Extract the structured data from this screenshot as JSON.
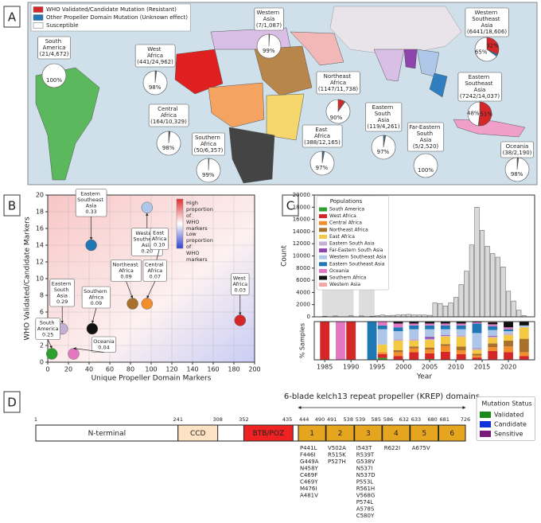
{
  "panel_labels": [
    "A",
    "B",
    "C",
    "D"
  ],
  "chart_data": [
    {
      "type": "pie",
      "legend": [
        {
          "name": "WHO Validated/Candidate Mutation (Resistant)",
          "color": "#d62728"
        },
        {
          "name": "Other Propeller Domain Mutation (Unknown effect)",
          "color": "#1f77b4"
        },
        {
          "name": "Susceptible",
          "color": "#ffffff"
        }
      ],
      "regions": [
        {
          "name": "South America",
          "counts": "(21/4,672)",
          "values": [
            0,
            0,
            100
          ],
          "value_labels": [
            null,
            null,
            "100%"
          ]
        },
        {
          "name": "West Africa",
          "counts": "(441/24,962)",
          "values": [
            1,
            1,
            98
          ],
          "value_labels": [
            null,
            null,
            "98%"
          ]
        },
        {
          "name": "Western Asia",
          "counts": "(7/1,087)",
          "values": [
            0,
            1,
            99
          ],
          "value_labels": [
            null,
            null,
            "99%"
          ]
        },
        {
          "name": "Central Africa",
          "counts": "(164/10,329)",
          "values": [
            1,
            1,
            98
          ],
          "value_labels": [
            null,
            null,
            "98%"
          ]
        },
        {
          "name": "Northeast Africa",
          "counts": "(1147/11,738)",
          "values": [
            9,
            1,
            90
          ],
          "value_labels": [
            null,
            null,
            "90%"
          ]
        },
        {
          "name": "Southern Africa",
          "counts": "(50/6,357)",
          "values": [
            0,
            1,
            99
          ],
          "value_labels": [
            null,
            null,
            "99%"
          ]
        },
        {
          "name": "East Africa",
          "counts": "(388/12,165)",
          "values": [
            1,
            2,
            97
          ],
          "value_labels": [
            null,
            null,
            "97%"
          ]
        },
        {
          "name": "Eastern South Asia",
          "counts": "(119/4,261)",
          "values": [
            1,
            2,
            97
          ],
          "value_labels": [
            null,
            null,
            "97%"
          ]
        },
        {
          "name": "Far-Eastern South Asia",
          "counts": "(5/2,520)",
          "values": [
            0,
            0,
            100
          ],
          "value_labels": [
            null,
            null,
            "100%"
          ]
        },
        {
          "name": "Western Southeast Asia",
          "counts": "(6441/18,606)",
          "values": [
            32,
            3,
            65
          ],
          "value_labels": [
            "32%",
            null,
            "65%"
          ]
        },
        {
          "name": "Eastern Southeast Asia",
          "counts": "(7242/14,037)",
          "values": [
            51,
            1,
            48
          ],
          "value_labels": [
            "51%",
            null,
            "48%"
          ]
        },
        {
          "name": "Oceania",
          "counts": "(38/2,190)",
          "values": [
            1,
            1,
            98
          ],
          "value_labels": [
            null,
            null,
            "98%"
          ]
        }
      ]
    },
    {
      "type": "scatter",
      "xlabel": "Unique Propeller Domain Markers",
      "ylabel": "WHO Validated/Candidate Markers",
      "xlim": [
        0,
        200
      ],
      "xticks": [
        0,
        20,
        40,
        60,
        80,
        100,
        120,
        140,
        160,
        180,
        200
      ],
      "ylim": [
        0,
        20
      ],
      "yticks": [
        0,
        2,
        4,
        6,
        8,
        10,
        12,
        14,
        16,
        18,
        20
      ],
      "grid": true,
      "colorbar_labels": [
        "High proportion of WHO markers",
        "Low proportion of WHO markers"
      ],
      "points": [
        {
          "name": "Eastern Southeast Asia",
          "x": 42,
          "y": 14,
          "ratio": 0.33,
          "color": "#1f77b4"
        },
        {
          "name": "Western Southeast Asia",
          "x": 96,
          "y": 18.5,
          "ratio": 0.2,
          "ratio_label": "0.20",
          "color": "#aec7e8"
        },
        {
          "name": "East Africa",
          "x": 104,
          "y": 11,
          "ratio": 0.1,
          "ratio_label": "0.10",
          "color": "#f5c842"
        },
        {
          "name": "Northeast Africa",
          "x": 82,
          "y": 7,
          "ratio": 0.09,
          "color": "#a8702a"
        },
        {
          "name": "Central Africa",
          "x": 96,
          "y": 7,
          "ratio": 0.07,
          "color": "#f28e2b"
        },
        {
          "name": "West Africa",
          "x": 186,
          "y": 5,
          "ratio": 0.03,
          "color": "#d62728"
        },
        {
          "name": "Southern Africa",
          "x": 43,
          "y": 4,
          "ratio": 0.09,
          "color": "#111111"
        },
        {
          "name": "Eastern South Asia",
          "x": 14,
          "y": 4,
          "ratio": 0.29,
          "color": "#c5b0d5"
        },
        {
          "name": "South America",
          "x": 4,
          "y": 1,
          "ratio": 0.25,
          "color": "#2ca02c"
        },
        {
          "name": "Oceania",
          "x": 25,
          "y": 1,
          "ratio": 0.04,
          "color": "#e377c2"
        }
      ]
    },
    {
      "type": "bar",
      "ylabel": "Count",
      "color": "#d9d9d9",
      "x": [
        1985,
        1986,
        1987,
        1988,
        1989,
        1990,
        1991,
        1992,
        1993,
        1994,
        1995,
        1996,
        1997,
        1998,
        1999,
        2000,
        2001,
        2002,
        2003,
        2004,
        2005,
        2006,
        2007,
        2008,
        2009,
        2010,
        2011,
        2012,
        2013,
        2014,
        2015,
        2016,
        2017,
        2018,
        2019,
        2020,
        2021,
        2022,
        2023
      ],
      "values": [
        100,
        0,
        150,
        0,
        0,
        200,
        0,
        150,
        0,
        100,
        200,
        300,
        200,
        250,
        300,
        350,
        400,
        300,
        300,
        300,
        250,
        2300,
        2200,
        1800,
        2300,
        3200,
        5300,
        7500,
        11800,
        18000,
        14200,
        11600,
        10400,
        9800,
        8200,
        4200,
        2600,
        1100,
        200
      ],
      "xlim": [
        1983,
        2025
      ],
      "ylim": [
        0,
        20000
      ],
      "yticks": [
        0,
        2000,
        4000,
        6000,
        8000,
        10000,
        12000,
        14000,
        16000,
        18000,
        20000
      ],
      "shaded_spans": [
        [
          1984.5,
          1990.5
        ],
        [
          1991.5,
          1994.5
        ]
      ]
    },
    {
      "type": "stacked_bar",
      "ylabel": "% Samples",
      "xlabel": "Year",
      "legend_title": "Populations",
      "x": [
        1985,
        1988,
        1990,
        1994,
        1996,
        1999,
        2002,
        2005,
        2008,
        2011,
        2014,
        2017,
        2020,
        2023
      ],
      "xlim": [
        1983,
        2025
      ],
      "xticks": [
        1985,
        1990,
        1995,
        2000,
        2005,
        2010,
        2015,
        2020
      ],
      "ylim": [
        0,
        100
      ],
      "series": [
        {
          "name": "South America",
          "color": "#2ca02c",
          "values": [
            0,
            0,
            0,
            0,
            5,
            0,
            0,
            2,
            1,
            0,
            1,
            0,
            0,
            0
          ]
        },
        {
          "name": "West Africa",
          "color": "#d62728",
          "values": [
            100,
            0,
            100,
            0,
            10,
            10,
            20,
            15,
            20,
            15,
            5,
            23,
            20,
            10
          ]
        },
        {
          "name": "Central Africa",
          "color": "#f28e2b",
          "values": [
            0,
            0,
            0,
            0,
            5,
            10,
            10,
            10,
            15,
            10,
            5,
            10,
            15,
            10
          ]
        },
        {
          "name": "Northeast Africa",
          "color": "#a8702a",
          "values": [
            0,
            0,
            0,
            0,
            0,
            5,
            5,
            5,
            5,
            10,
            5,
            10,
            15,
            35
          ]
        },
        {
          "name": "East Africa",
          "color": "#f5c842",
          "values": [
            0,
            0,
            0,
            0,
            20,
            25,
            15,
            20,
            20,
            25,
            10,
            15,
            15,
            30
          ]
        },
        {
          "name": "Eastern South Asia",
          "color": "#c5b0d5",
          "values": [
            0,
            0,
            0,
            0,
            0,
            5,
            5,
            3,
            2,
            5,
            3,
            3,
            5,
            0
          ]
        },
        {
          "name": "Far-Eastern South Asia",
          "color": "#8e44ad",
          "values": [
            0,
            0,
            0,
            0,
            0,
            0,
            0,
            5,
            2,
            0,
            1,
            2,
            0,
            0
          ]
        },
        {
          "name": "Western Southeast Asia",
          "color": "#aec7e8",
          "values": [
            0,
            0,
            0,
            0,
            40,
            20,
            25,
            20,
            15,
            15,
            40,
            15,
            5,
            5
          ]
        },
        {
          "name": "Eastern Southeast Asia",
          "color": "#1f77b4",
          "values": [
            0,
            0,
            0,
            100,
            10,
            10,
            10,
            10,
            10,
            10,
            25,
            10,
            5,
            0
          ]
        },
        {
          "name": "Oceania",
          "color": "#e377c2",
          "values": [
            0,
            100,
            0,
            0,
            10,
            10,
            5,
            5,
            5,
            5,
            3,
            5,
            5,
            0
          ]
        },
        {
          "name": "Southern Africa",
          "color": "#111111",
          "values": [
            0,
            0,
            0,
            0,
            0,
            5,
            5,
            5,
            5,
            5,
            2,
            5,
            15,
            10
          ]
        },
        {
          "name": "Western Asia",
          "color": "#f4a6a6",
          "values": [
            0,
            0,
            0,
            0,
            0,
            0,
            0,
            0,
            0,
            0,
            0,
            2,
            0,
            0
          ]
        }
      ]
    }
  ],
  "protein_diagram": {
    "title": "6-blade kelch13 repeat propeller (KREP) domains",
    "length": [
      1,
      726
    ],
    "positions": [
      1,
      241,
      308,
      352,
      435,
      444,
      490,
      491,
      538,
      539,
      585,
      586,
      632,
      633,
      680,
      681,
      726
    ],
    "domains": [
      {
        "label": "N-terminal",
        "start": 1,
        "end": 241,
        "color": "#ffffff",
        "text_color": "#222222",
        "mutations": []
      },
      {
        "label": "CCD",
        "start": 241,
        "end": 308,
        "color": "#fde3c4",
        "text_color": "#222222",
        "mutations": []
      },
      {
        "label": "BTB/POZ",
        "start": 352,
        "end": 435,
        "color": "#ee2222",
        "text_color": "#ffffff",
        "mutations": []
      },
      {
        "label": "1",
        "start": 444,
        "end": 490,
        "color": "#e6a51e",
        "text_color": "#222222",
        "mutations": [
          {
            "label": "P441L",
            "color": "#1f3fd0"
          },
          {
            "label": "F446I",
            "color": "#2a9a2a"
          },
          {
            "label": "G449A",
            "color": "#1f3fd0"
          },
          {
            "label": "N458Y",
            "color": "#2a9a2a"
          },
          {
            "label": "C469F",
            "color": "#1f3fd0"
          },
          {
            "label": "C469Y",
            "color": "#2a9a2a"
          },
          {
            "label": "M476I",
            "color": "#2a9a2a"
          },
          {
            "label": "A481V",
            "color": "#1f3fd0"
          }
        ]
      },
      {
        "label": "2",
        "start": 491,
        "end": 538,
        "color": "#e6a51e",
        "text_color": "#222222",
        "mutations": [
          {
            "label": "V502A",
            "color": "#2a9a2a"
          },
          {
            "label": "R515K",
            "color": "#1f3fd0"
          },
          {
            "label": "P527H",
            "color": "#1f3fd0"
          }
        ]
      },
      {
        "label": "3",
        "start": 539,
        "end": 585,
        "color": "#e6a51e",
        "text_color": "#222222",
        "mutations": [
          {
            "label": "I543T",
            "color": "#2a9a2a"
          },
          {
            "label": "R539T",
            "color": "#2a9a2a"
          },
          {
            "label": "G538V",
            "color": "#1f3fd0"
          },
          {
            "label": "N537I",
            "color": "#1f3fd0"
          },
          {
            "label": "N537D",
            "color": "#1f3fd0"
          },
          {
            "label": "P553L",
            "color": "#2a9a2a"
          },
          {
            "label": "R561H",
            "color": "#1f3fd0"
          },
          {
            "label": "V568G",
            "color": "#2a9a2a"
          },
          {
            "label": "P574L",
            "color": "#2a9a2a"
          },
          {
            "label": "A578S",
            "color": "#8a1a8a"
          },
          {
            "label": "C580Y",
            "color": "#2a9a2a"
          }
        ]
      },
      {
        "label": "4",
        "start": 586,
        "end": 632,
        "color": "#e6a51e",
        "text_color": "#222222",
        "mutations": [
          {
            "label": "R622I",
            "color": "#2a9a2a"
          }
        ]
      },
      {
        "label": "5",
        "start": 633,
        "end": 680,
        "color": "#e6a51e",
        "text_color": "#222222",
        "mutations": [
          {
            "label": "A675V",
            "color": "#2a9a2a"
          }
        ]
      },
      {
        "label": "6",
        "start": 681,
        "end": 726,
        "color": "#e6a51e",
        "text_color": "#222222",
        "mutations": []
      }
    ],
    "legend_title": "Mutation Status",
    "legend": [
      {
        "name": "Validated",
        "color": "#1a8a1a"
      },
      {
        "name": "Candidate",
        "color": "#1030e0"
      },
      {
        "name": "Sensitive",
        "color": "#7a1a7a"
      }
    ]
  }
}
